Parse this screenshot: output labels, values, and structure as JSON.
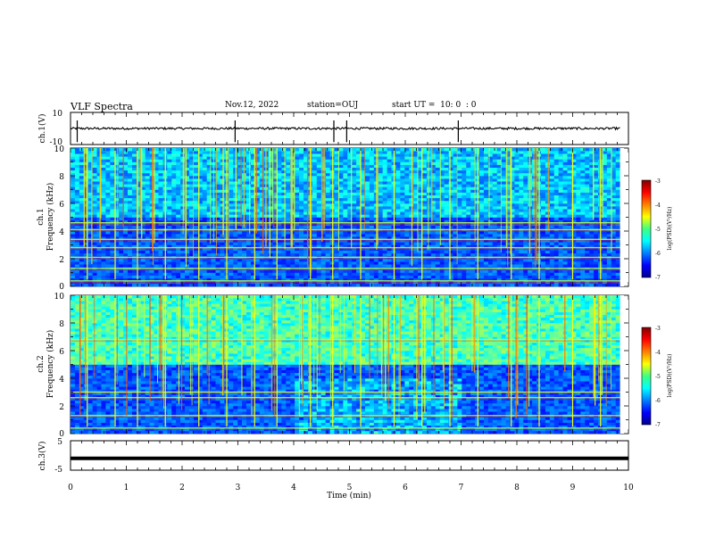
{
  "header": {
    "title": "VLF Spectra",
    "date": "Nov.12, 2022",
    "station": "station=OUJ",
    "start_time": "start UT =  10: 0  : 0"
  },
  "chart_data": [
    {
      "id": "ch1-waveform",
      "type": "line",
      "ylabel": "ch.1(V)",
      "ylim": [
        -10,
        10
      ],
      "y_ticks": [
        "10",
        "-10"
      ],
      "xlim": [
        0,
        10
      ],
      "note_level": "signal centred near 0 V with small noise and sparse spikes",
      "spike_times_min": [
        0.12,
        2.95,
        4.72,
        4.95,
        6.95
      ],
      "color": "#000000"
    },
    {
      "id": "ch1-spectrogram",
      "type": "heatmap",
      "xlabel": "",
      "ylabel": "ch.1\nFrequency (kHz)",
      "ylabel_line1": "ch.1",
      "ylabel_line2": "Frequency (kHz)",
      "xlim": [
        0,
        9.85
      ],
      "ylim": [
        0,
        10
      ],
      "y_ticks": [
        "0",
        "2",
        "4",
        "6",
        "8",
        "10"
      ],
      "colorbar": {
        "label": "log(PSD)(V²/Hz)",
        "range": [
          -7,
          -3
        ],
        "ticks": [
          "-3",
          "-4",
          "-5",
          "-6",
          "-7"
        ],
        "colormap": "jet"
      },
      "bright_bands_khz": [
        0.4,
        1.3,
        2.1,
        2.8,
        3.4,
        4.1,
        4.6
      ],
      "burst_times_min": [
        0.3,
        0.8,
        1.2,
        1.7,
        2.3,
        2.8,
        3.3,
        3.7,
        4.3,
        4.7,
        5.2,
        5.8,
        6.3,
        6.8,
        7.3,
        7.9,
        8.4,
        9.0,
        9.5
      ]
    },
    {
      "id": "ch2-spectrogram",
      "type": "heatmap",
      "xlabel": "",
      "ylabel": "ch.2\nFrequency (kHz)",
      "ylabel_line1": "ch.2",
      "ylabel_line2": "Frequency (kHz)",
      "xlim": [
        0,
        9.85
      ],
      "ylim": [
        0,
        10
      ],
      "y_ticks": [
        "0",
        "2",
        "4",
        "6",
        "8",
        "10"
      ],
      "colorbar": {
        "label": "log(PSD)(V²/Hz)",
        "range": [
          -7,
          -3
        ],
        "ticks": [
          "-3",
          "-4",
          "-5",
          "-6",
          "-7"
        ],
        "colormap": "jet"
      },
      "bright_bands_khz": [
        0.4,
        1.3,
        2.6,
        3.0,
        6.8
      ],
      "burst_times_min": [
        0.3,
        0.8,
        1.2,
        1.7,
        2.3,
        2.8,
        3.3,
        3.7,
        4.3,
        4.7,
        5.2,
        5.8,
        6.3,
        6.8,
        7.3,
        7.9,
        8.4,
        9.0,
        9.5
      ]
    },
    {
      "id": "ch3-waveform",
      "type": "line",
      "ylabel": "ch.3(V)",
      "ylim": [
        -5,
        5
      ],
      "y_ticks": [
        "5",
        "-5"
      ],
      "xlim": [
        0,
        10
      ],
      "level": -1.0,
      "color": "#000000"
    }
  ],
  "x_axis": {
    "label": "Time (min)",
    "range": [
      0,
      10
    ],
    "ticks": [
      "0",
      "1",
      "2",
      "3",
      "4",
      "5",
      "6",
      "7",
      "8",
      "9",
      "10"
    ]
  }
}
